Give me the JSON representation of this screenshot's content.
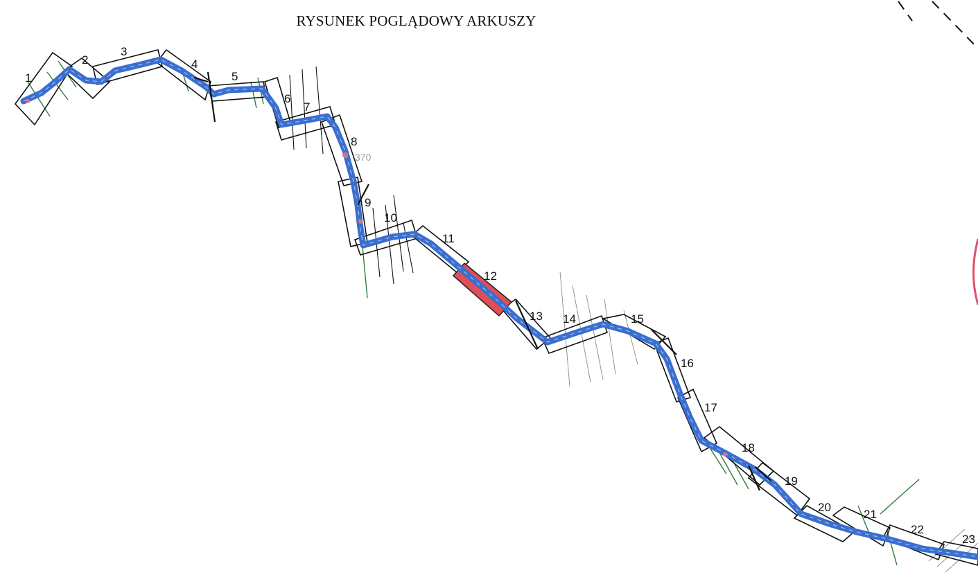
{
  "title": "RYSUNEK POGLĄDOWY ARKUSZY",
  "colors": {
    "route": "#3a6fd0",
    "frame": "#111111",
    "highlight": "#e04e56",
    "tick_green": "#2f7d3a",
    "tick_gray": "#8a8a8a",
    "station": "#e0737a",
    "boundary_circle": "#e0506a"
  },
  "chainage_label": "370",
  "sheets": [
    {
      "label": "1"
    },
    {
      "label": "2"
    },
    {
      "label": "3"
    },
    {
      "label": "4"
    },
    {
      "label": "5"
    },
    {
      "label": "6"
    },
    {
      "label": "7"
    },
    {
      "label": "8"
    },
    {
      "label": "9"
    },
    {
      "label": "10"
    },
    {
      "label": "11"
    },
    {
      "label": "12",
      "highlighted": true
    },
    {
      "label": "13"
    },
    {
      "label": "14"
    },
    {
      "label": "15"
    },
    {
      "label": "16"
    },
    {
      "label": "17"
    },
    {
      "label": "18"
    },
    {
      "label": "19"
    },
    {
      "label": "20"
    },
    {
      "label": "21"
    },
    {
      "label": "22"
    },
    {
      "label": "23"
    }
  ]
}
